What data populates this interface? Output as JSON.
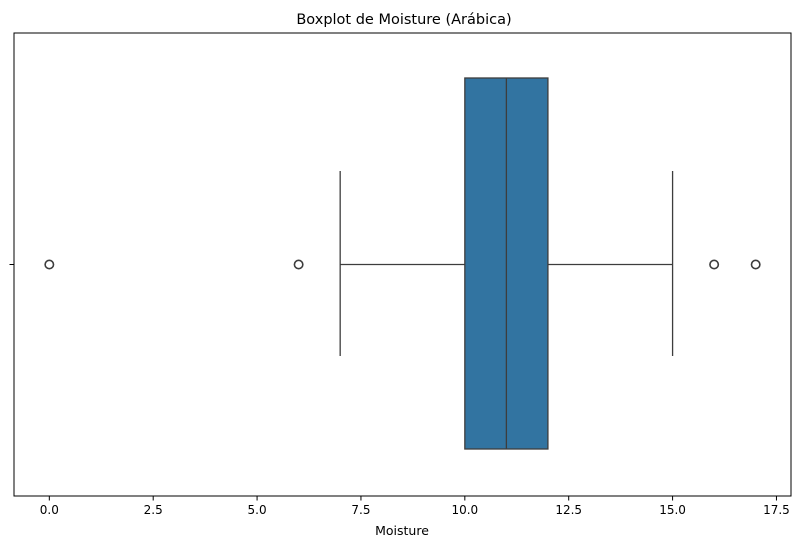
{
  "chart_data": {
    "type": "boxplot",
    "title": "Boxplot de Moisture (Arábica)",
    "xlabel": "Moisture",
    "ylabel": "",
    "xlim": [
      -0.85,
      17.85
    ],
    "xticks": [
      0.0,
      2.5,
      5.0,
      7.5,
      10.0,
      12.5,
      15.0,
      17.5
    ],
    "xtick_labels": [
      "0.0",
      "2.5",
      "5.0",
      "7.5",
      "10.0",
      "12.5",
      "15.0",
      "17.5"
    ],
    "grid": false,
    "box": {
      "whisker_low": 7,
      "q1": 10,
      "median": 11,
      "q3": 12,
      "whisker_high": 15,
      "outliers": [
        0,
        6,
        16,
        17
      ]
    },
    "colors": {
      "box_fill": "#3274a1",
      "line": "#3d3d3d",
      "axis": "#000000"
    }
  }
}
